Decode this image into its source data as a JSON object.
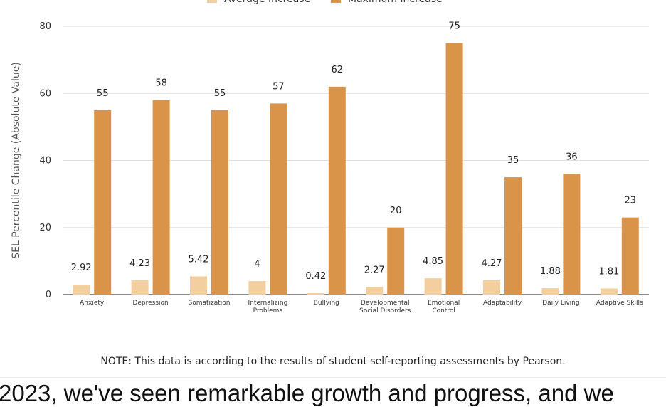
{
  "chart_data": {
    "type": "bar",
    "ylabel": "SEL Percentile Change (Absolute Value)",
    "ylim": [
      0,
      80
    ],
    "yticks": [
      0,
      20,
      40,
      60,
      80
    ],
    "grid": true,
    "legend_position": "top",
    "categories": [
      [
        "Anxiety"
      ],
      [
        "Depression"
      ],
      [
        "Somatization"
      ],
      [
        "Internalizing",
        "Problems"
      ],
      [
        "Bullying"
      ],
      [
        "Developmental",
        "Social Disorders"
      ],
      [
        "Emotional",
        "Control"
      ],
      [
        "Adaptability"
      ],
      [
        "Daily Living"
      ],
      [
        "Adaptive Skills"
      ]
    ],
    "series": [
      {
        "name": "Average Increase",
        "color": "#f3ce9e",
        "values": [
          2.92,
          4.23,
          5.42,
          4,
          0.42,
          2.27,
          4.85,
          4.27,
          1.88,
          1.81
        ],
        "labels": [
          "2.92",
          "4.23",
          "5.42",
          "4",
          "0.42",
          "2.27",
          "4.85",
          "4.27",
          "1.88",
          "1.81"
        ]
      },
      {
        "name": "Maximum Increase",
        "color": "#d9944a",
        "values": [
          55,
          58,
          55,
          57,
          62,
          20,
          75,
          35,
          36,
          23
        ],
        "labels": [
          "55",
          "58",
          "55",
          "57",
          "62",
          "20",
          "75",
          "35",
          "36",
          "23"
        ]
      }
    ]
  },
  "note": "NOTE: This data is according to the results of student self-reporting assessments by Pearson.",
  "caption": "2023, we've seen remarkable growth and progress, and we"
}
